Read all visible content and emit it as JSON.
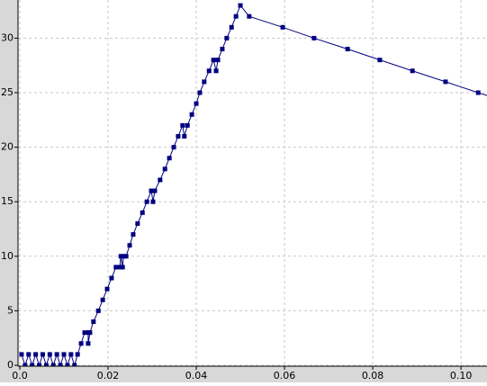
{
  "chart_data": {
    "type": "line",
    "x": [
      0.0004,
      0.0012,
      0.002,
      0.0028,
      0.0036,
      0.0044,
      0.0052,
      0.006,
      0.0068,
      0.0076,
      0.0084,
      0.0092,
      0.01,
      0.0108,
      0.0116,
      0.0124,
      0.0131,
      0.0139,
      0.0147,
      0.0155,
      0.0155,
      0.0159,
      0.0167,
      0.0178,
      0.0188,
      0.0198,
      0.0208,
      0.0218,
      0.0227,
      0.0229,
      0.0233,
      0.0235,
      0.0241,
      0.0249,
      0.0257,
      0.0267,
      0.0278,
      0.0288,
      0.0298,
      0.0302,
      0.0306,
      0.0318,
      0.0329,
      0.0339,
      0.0349,
      0.0359,
      0.0369,
      0.0373,
      0.038,
      0.039,
      0.04,
      0.0408,
      0.0418,
      0.0429,
      0.0439,
      0.0445,
      0.0449,
      0.0459,
      0.0469,
      0.048,
      0.049,
      0.05,
      0.052,
      0.0596,
      0.0667,
      0.0743,
      0.0816,
      0.089,
      0.0965,
      0.1039,
      0.1078
    ],
    "series": [
      {
        "color": "#000080",
        "values": [
          1,
          0,
          1,
          0,
          1,
          0,
          1,
          0,
          1,
          0,
          1,
          0,
          1,
          0,
          1,
          0,
          1,
          2,
          3,
          3,
          2,
          3,
          4,
          5,
          6,
          7,
          8,
          9,
          9,
          10,
          9,
          10,
          10,
          11,
          12,
          13,
          14,
          15,
          16,
          15,
          16,
          17,
          18,
          19,
          20,
          21,
          22,
          21,
          22,
          23,
          24,
          25,
          26,
          27,
          28,
          27,
          28,
          29,
          30,
          31,
          32,
          33,
          32,
          31,
          30,
          29,
          28,
          27,
          26,
          25,
          24.5
        ]
      }
    ],
    "xlim": [
      0,
      0.1059
    ],
    "ylim": [
      0,
      33.5
    ],
    "xticks": [
      {
        "value": 0,
        "label": "0.0"
      },
      0.02,
      0.04,
      0.06,
      0.08,
      {
        "value": 0.1,
        "label": "0.10"
      }
    ],
    "yticks": [
      0,
      5,
      10,
      15,
      20,
      25,
      30
    ],
    "grid": true
  }
}
